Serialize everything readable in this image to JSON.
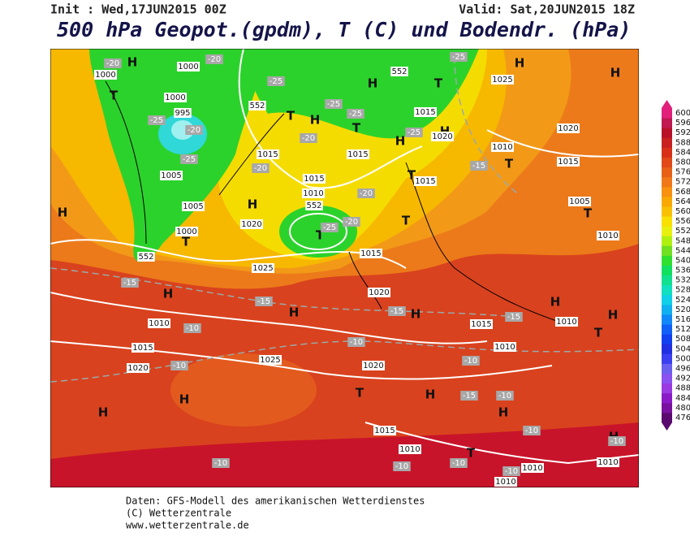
{
  "header": {
    "init": "Init : Wed,17JUN2015 00Z",
    "valid": "Valid: Sat,20JUN2015 18Z",
    "title": "500 hPa Geopot.(gpdm), T (C) und Bodendr. (hPa)"
  },
  "legend": {
    "levels": [
      476,
      480,
      484,
      488,
      492,
      496,
      500,
      504,
      508,
      512,
      516,
      520,
      524,
      528,
      532,
      536,
      540,
      544,
      548,
      552,
      556,
      560,
      564,
      568,
      572,
      576,
      580,
      584,
      588,
      592,
      596,
      600
    ],
    "colors": [
      "#5a0a6e",
      "#7a10a0",
      "#8a1ac8",
      "#9a3ae0",
      "#8a50f0",
      "#6a60f0",
      "#3a40f0",
      "#2030e0",
      "#1040f0",
      "#1060f8",
      "#1088f8",
      "#10b0f0",
      "#10d0e8",
      "#10e0c0",
      "#10e090",
      "#10e060",
      "#30e030",
      "#70e020",
      "#b0f010",
      "#e8f010",
      "#f8e000",
      "#f8c000",
      "#f8a800",
      "#f89010",
      "#f07818",
      "#e86018",
      "#e04818",
      "#d83018",
      "#c82020",
      "#b81028",
      "#c01850",
      "#e0207a"
    ]
  },
  "map_labels": [
    "H",
    "H",
    "T",
    "H",
    "H",
    "T",
    "T",
    "H",
    "T",
    "H",
    "H",
    "T",
    "H",
    "H",
    "T",
    "T",
    "T",
    "T",
    "T",
    "H",
    "H",
    "H",
    "H",
    "H",
    "T",
    "H",
    "H",
    "T",
    "H",
    "H",
    "T",
    "H",
    "1000",
    "1000",
    "1025",
    "1000",
    "995",
    "1015",
    "1020",
    "1020",
    "1010",
    "1015",
    "1015",
    "1015",
    "1005",
    "1015",
    "1015",
    "1010",
    "552",
    "1005",
    "1005",
    "1020",
    "1000",
    "1010",
    "1015",
    "1025",
    "1020",
    "1010",
    "1015",
    "1010",
    "1010",
    "1015",
    "1025",
    "1020",
    "1020",
    "1015",
    "1010",
    "1010",
    "1010",
    "1010",
    "552",
    "552",
    "552",
    "-20",
    "-25",
    "-20",
    "-25",
    "-25",
    "-20",
    "-25",
    "-25",
    "-20",
    "-20",
    "-20",
    "-20",
    "-25",
    "-15",
    "-15",
    "-15",
    "-15",
    "-15",
    "-10",
    "-10",
    "-10",
    "-10",
    "-15",
    "-10",
    "-10",
    "-10",
    "-10",
    "-10",
    "-10",
    "-25",
    "-25",
    "-10"
  ],
  "footer": [
    "Daten: GFS-Modell des amerikanischen Wetterdienstes",
    "(C) Wetterzentrale",
    "www.wetterzentrale.de"
  ]
}
